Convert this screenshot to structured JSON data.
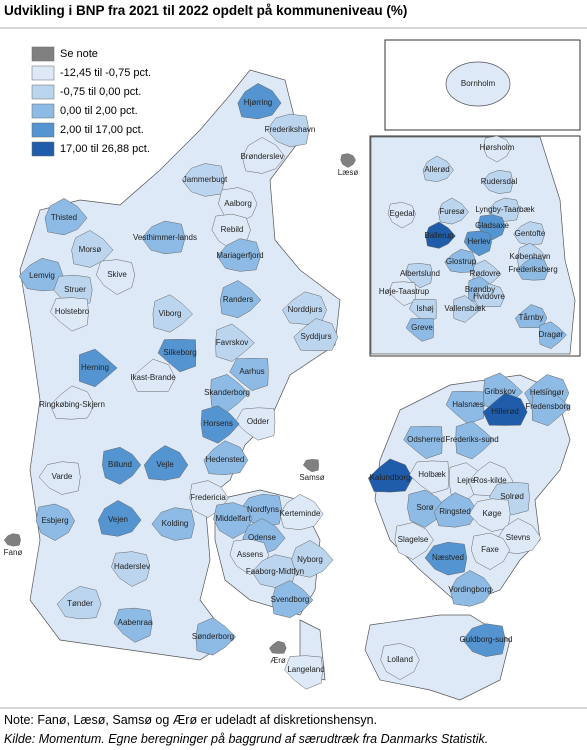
{
  "title": "Udvikling i BNP fra 2021 til 2022 opdelt på kommuneniveau (%)",
  "legend": [
    {
      "label": "Se note",
      "color": "#808080"
    },
    {
      "label": "-12,45 til -0,75 pct.",
      "color": "#dde9f7"
    },
    {
      "label": "-0,75 til 0,00 pct.",
      "color": "#bcd5ee"
    },
    {
      "label": "0,00 til 2,00 pct.",
      "color": "#8dbbe5"
    },
    {
      "label": "2,00 til 17,00 pct.",
      "color": "#5495d1"
    },
    {
      "label": "17,00 til 26,88 pct.",
      "color": "#1f5dab"
    }
  ],
  "municipalities": [
    "Hjørring",
    "Frederikshavn",
    "Læsø",
    "Brønderslev",
    "Jammerbugt",
    "Aalborg",
    "Thisted",
    "Vesthimmer-lands",
    "Rebild",
    "Morsø",
    "Mariagerfjord",
    "Skive",
    "Randers",
    "Lemvig",
    "Struer",
    "Viborg",
    "Norddjurs",
    "Holstebro",
    "Favrskov",
    "Syddjurs",
    "Silkeborg",
    "Herning",
    "Ikast-Brande",
    "Aarhus",
    "Skanderborg",
    "Ringkøbing-Skjern",
    "Odder",
    "Horsens",
    "Hedensted",
    "Samsø",
    "Billund",
    "Vejle",
    "Varde",
    "Fredericia",
    "Kerteminde",
    "Nordfyns",
    "Esbjerg",
    "Vejen",
    "Kolding",
    "Middelfart",
    "Odense",
    "Fanø",
    "Assens",
    "Nyborg",
    "Faaborg-Midtfyn",
    "Haderslev",
    "Svendborg",
    "Tønder",
    "Aabenraa",
    "Sønderborg",
    "Ærø",
    "Langeland",
    "Gribskov",
    "Helsingør",
    "Halsnæs",
    "Fredensborg",
    "Hillerød",
    "Odsherred",
    "Frederiks-sund",
    "Kalundborg",
    "Holbæk",
    "Lejre",
    "Ros-kilde",
    "Solrød",
    "Sorø",
    "Ringsted",
    "Køge",
    "Slagelse",
    "Stevns",
    "Næstved",
    "Faxe",
    "Vordingborg",
    "Guldborg-sund",
    "Lolland"
  ],
  "inset_bornholm": [
    "Bornholm"
  ],
  "inset_copenhagen": [
    "Hørsholm",
    "Allerød",
    "Rudersdal",
    "Egedal",
    "Furesø",
    "Lyngby-Taarbæk",
    "Gladsaxe",
    "Ballerup",
    "Gentofte",
    "Herlev",
    "København",
    "Glostrup",
    "Albertslund",
    "Rødovre",
    "Frederiksberg",
    "Høje-Taastrup",
    "Brøndby",
    "Hvidovre",
    "Ishøj",
    "Vallensbæk",
    "Tårnby",
    "Greve",
    "Dragør"
  ],
  "note": "Note: Fanø, Læsø, Samsø og Ærø er udeladt af diskretionshensyn.",
  "source": "Kilde: Momentum. Egne beregninger på baggrund af særudtræk fra Danmarks Statistik."
}
